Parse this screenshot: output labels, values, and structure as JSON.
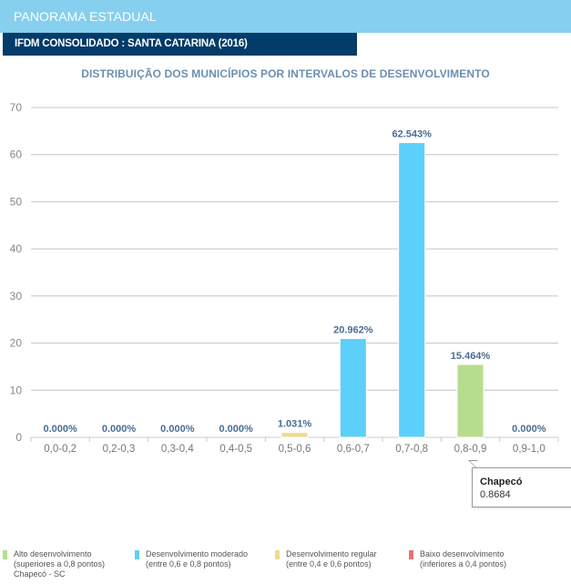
{
  "header": {
    "title": "PANORAMA ESTADUAL",
    "subtitle": "IFDM CONSOLIDADO : SANTA CATARINA (2016)"
  },
  "chart_data": {
    "type": "bar",
    "title": "DISTRIBUIÇÃO DOS MUNICÍPIOS POR INTERVALOS DE DESENVOLVIMENTO",
    "xlabel": "",
    "ylabel": "",
    "ylim": [
      0,
      70
    ],
    "yticks": [
      0,
      10,
      20,
      30,
      40,
      50,
      60,
      70
    ],
    "grid": true,
    "categories": [
      "0,0-0,2",
      "0,2-0,3",
      "0,3-0,4",
      "0,4-0,5",
      "0,5-0,6",
      "0,6-0,7",
      "0,7-0,8",
      "0,8-0,9",
      "0,9-1,0"
    ],
    "values": [
      0.0,
      0.0,
      0.0,
      0.0,
      1.031,
      20.962,
      62.543,
      15.464,
      0.0
    ],
    "data_labels": [
      "0.000%",
      "0.000%",
      "0.000%",
      "0.000%",
      "1.031%",
      "20.962%",
      "62.543%",
      "15.464%",
      "0.000%"
    ],
    "bar_colors": [
      "#e57373",
      "#e57373",
      "#e57373",
      "#e57373",
      "#f2d98a",
      "#5ccffa",
      "#5ccffa",
      "#b6dd8d",
      "#b6dd8d"
    ],
    "legend_position": "bottom"
  },
  "tooltip": {
    "name": "Chapecó",
    "value": "0.8684"
  },
  "legend": [
    {
      "label": "Alto desenvolvimento",
      "detail": "(superiores a 0,8 pontos)",
      "extra": "Chapecó - SC",
      "color": "#b6dd8d"
    },
    {
      "label": "Desenvolvimento moderado",
      "detail": "(entre 0,6 e 0,8 pontos)",
      "extra": "",
      "color": "#5ccffa"
    },
    {
      "label": "Desenvolvimento regular",
      "detail": "(entre 0,4 e 0,6 pontos)",
      "extra": "",
      "color": "#f2d98a"
    },
    {
      "label": "Baixo desenvolvimento",
      "detail": "(inferiores a 0,4 pontos)",
      "extra": "",
      "color": "#e57373"
    }
  ]
}
